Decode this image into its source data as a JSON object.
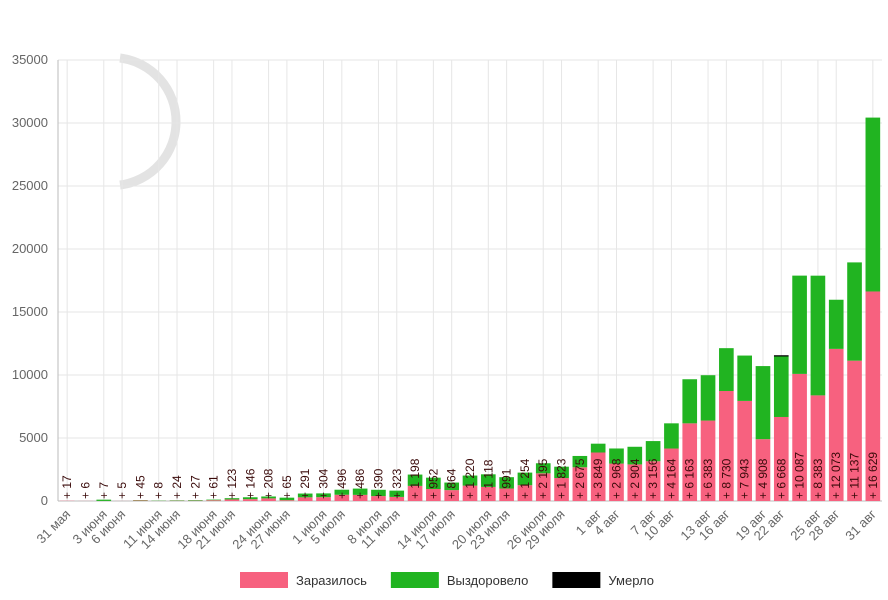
{
  "chart_data": {
    "type": "stacked_bar",
    "categories": [
      "31 мая",
      null,
      "3 июня",
      "6 июня",
      null,
      "11 июня",
      "14 июня",
      null,
      "18 июня",
      "21 июня",
      null,
      "24 июня",
      "27 июня",
      null,
      "1 июля",
      "5 июля",
      null,
      "8 июля",
      "11 июля",
      null,
      "14 июля",
      "17 июля",
      null,
      "20 июля",
      "23 июля",
      null,
      "26 июля",
      "29 июля",
      null,
      "1 авг",
      "4 авг",
      null,
      "7 авг",
      "10 авг",
      null,
      "13 авг",
      "16 авг",
      null,
      "19 авг",
      "22 авг",
      null,
      "25 авг",
      "28 авг",
      null,
      "31 авг"
    ],
    "series": [
      {
        "name": "Заразилось",
        "color": "#f7617f",
        "values": [
          17,
          6,
          7,
          5,
          45,
          8,
          24,
          27,
          61,
          123,
          146,
          208,
          65,
          291,
          304,
          496,
          486,
          390,
          323,
          1198,
          952,
          864,
          1220,
          1118,
          991,
          1254,
          2195,
          1823,
          2675,
          3849,
          2968,
          2904,
          3156,
          4164,
          6163,
          6383,
          8730,
          7943,
          4908,
          6668,
          10087,
          8383,
          12073,
          11137,
          16629
        ],
        "value_labels": [
          "+ 17",
          "+ 6",
          "+ 7",
          "+ 5",
          "+ 45",
          "+ 8",
          "+ 24",
          "+ 27",
          "+ 61",
          "+ 123",
          "+ 146",
          "+ 208",
          "+ 65",
          "+ 291",
          "+ 304",
          "+ 496",
          "+ 486",
          "+ 390",
          "+ 323",
          "+ 1 198",
          "+ 952",
          "+ 864",
          "+ 1 220",
          "+ 1 118",
          "+ 991",
          "+ 1 254",
          "+ 2 195",
          "+ 1 823",
          "+ 2 675",
          "+ 3 849",
          "+ 2 968",
          "+ 2 904",
          "+ 3 156",
          "+ 4 164",
          "+ 6 163",
          "+ 6 383",
          "+ 8 730",
          "+ 7 943",
          "+ 4 908",
          "+ 6 668",
          "+ 10 087",
          "+ 8 383",
          "+ 12 073",
          "+ 11 137",
          "+ 16 629"
        ]
      },
      {
        "name": "Выздоровело",
        "color": "#21b421",
        "values": [
          0,
          0,
          100,
          0,
          30,
          20,
          30,
          40,
          50,
          100,
          150,
          150,
          200,
          300,
          300,
          400,
          500,
          500,
          500,
          900,
          900,
          600,
          800,
          1000,
          900,
          1000,
          800,
          900,
          900,
          700,
          1200,
          1400,
          1600,
          2000,
          3500,
          3600,
          3400,
          3600,
          5800,
          4800,
          7800,
          9500,
          3900,
          7800,
          13800
        ]
      },
      {
        "name": "Умерло",
        "color": "#000000",
        "values": [
          0,
          0,
          0,
          0,
          0,
          0,
          0,
          0,
          0,
          0,
          0,
          0,
          0,
          0,
          0,
          0,
          0,
          0,
          0,
          0,
          0,
          0,
          0,
          0,
          0,
          0,
          0,
          0,
          0,
          0,
          0,
          0,
          0,
          0,
          0,
          0,
          0,
          0,
          0,
          100,
          0,
          0,
          0,
          0,
          0
        ]
      }
    ],
    "ylim": [
      0,
      35000
    ],
    "yticks": [
      0,
      5000,
      10000,
      15000,
      20000,
      25000,
      30000,
      35000
    ],
    "grid": true
  }
}
